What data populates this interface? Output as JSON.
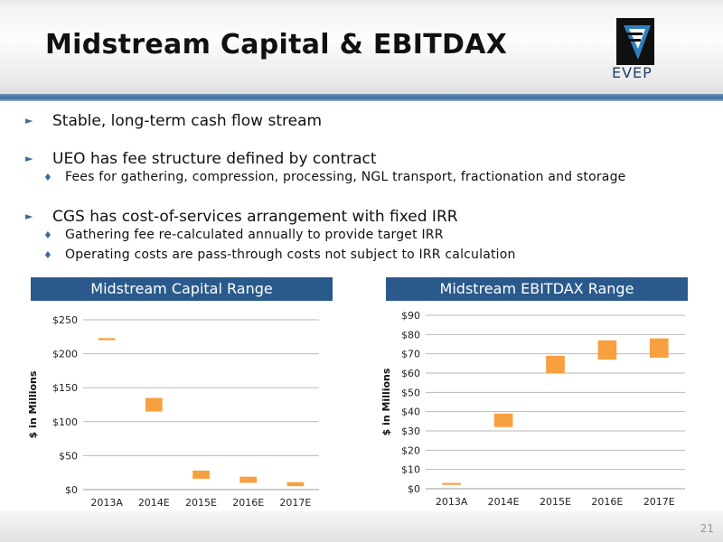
{
  "slide": {
    "title": "Midstream Capital & EBITDAX",
    "logo_text": "EVEP",
    "page_number": "21"
  },
  "bullets": [
    {
      "level": 1,
      "text": "Stable, long-term cash flow stream"
    },
    {
      "level": 1,
      "text": "UEO has fee structure defined by contract"
    },
    {
      "level": 2,
      "text": "Fees for gathering, compression, processing, NGL transport, fractionation and storage"
    },
    {
      "level": 1,
      "text": "CGS has cost-of-services arrangement with fixed IRR"
    },
    {
      "level": 2,
      "text": "Gathering fee re-calculated annually to provide target IRR"
    },
    {
      "level": 2,
      "text": "Operating costs are pass-through costs not subject to IRR calculation"
    }
  ],
  "colors": {
    "bar": "#f7a040",
    "header_blue": "#2a5a8c",
    "bullet": "#3d6b9a"
  },
  "chart_data": [
    {
      "type": "bar",
      "title": "Midstream Capital Range",
      "ylabel": "$ in Millions",
      "categories": [
        "2013A",
        "2014E",
        "2015E",
        "2016E",
        "2017E"
      ],
      "ranges": [
        [
          220,
          223
        ],
        [
          115,
          135
        ],
        [
          16,
          28
        ],
        [
          10,
          19
        ],
        [
          5,
          11
        ]
      ],
      "ylim": [
        0,
        250
      ],
      "yticks": [
        0,
        50,
        100,
        150,
        200,
        250
      ],
      "tick_labels": [
        "$0",
        "$50",
        "$100",
        "$150",
        "$200",
        "$250"
      ],
      "grid": true
    },
    {
      "type": "bar",
      "title": "Midstream EBITDAX Range",
      "ylabel": "$ in Millions",
      "categories": [
        "2013A",
        "2014E",
        "2015E",
        "2016E",
        "2017E"
      ],
      "ranges": [
        [
          2,
          3
        ],
        [
          32,
          39
        ],
        [
          60,
          69
        ],
        [
          67,
          77
        ],
        [
          68,
          78
        ]
      ],
      "ylim": [
        0,
        90
      ],
      "yticks": [
        0,
        10,
        20,
        30,
        40,
        50,
        60,
        70,
        80,
        90
      ],
      "tick_labels": [
        "$0",
        "$10",
        "$20",
        "$30",
        "$40",
        "$50",
        "$60",
        "$70",
        "$80",
        "$90"
      ],
      "grid": true
    }
  ]
}
